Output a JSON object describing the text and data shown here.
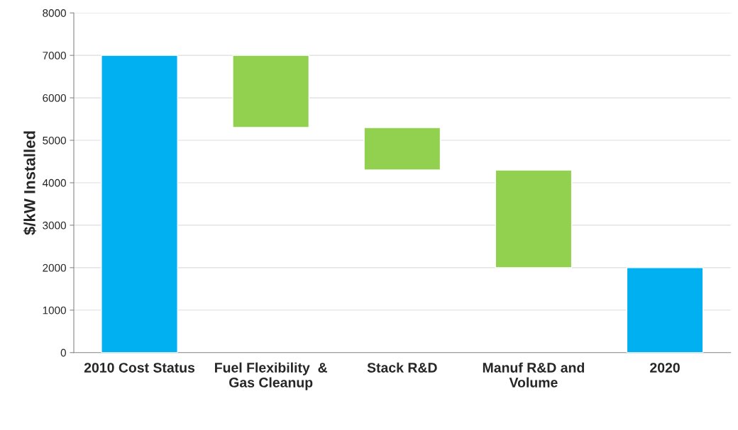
{
  "chart_data": {
    "type": "bar",
    "categories": [
      "2010 Cost Status",
      "Fuel Flexibility  &\nGas Cleanup",
      "Stack R&D",
      "Manuf R&D and\nVolume",
      "2020"
    ],
    "values": [
      7000,
      1700,
      1000,
      2300,
      2000
    ],
    "base": [
      0,
      5300,
      4300,
      2000,
      0
    ],
    "colors": [
      "#00b0f0",
      "#92d050",
      "#92d050",
      "#92d050",
      "#00b0f0"
    ],
    "ylabel": "$/kW Installed",
    "ylim": [
      0,
      8000
    ],
    "yticks": [
      0,
      1000,
      2000,
      3000,
      4000,
      5000,
      6000,
      7000,
      8000
    ],
    "grid": "y",
    "legend": false
  }
}
